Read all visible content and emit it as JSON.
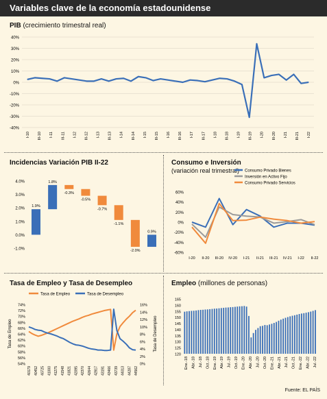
{
  "page": {
    "title": "Variables clave de la economía estadounidense",
    "source": "Fuente: EL PAÍS"
  },
  "chart_data": [
    {
      "id": "pib",
      "type": "line",
      "title": "PIB",
      "subtitle": "(crecimiento trimestral real)",
      "ylim": [
        -40,
        40
      ],
      "yticks": [
        "40%",
        "30%",
        "20%",
        "10%",
        "0%",
        "-10%",
        "-20%",
        "-30%",
        "-40%"
      ],
      "xlabels": [
        "I-10",
        "III-10",
        "I-11",
        "III-11",
        "I-12",
        "III-12",
        "I-13",
        "III-13",
        "I-14",
        "III-14",
        "I-15",
        "III-15",
        "I-16",
        "III-16",
        "I-17",
        "III-17",
        "I-18",
        "III-18",
        "I-19",
        "III-19",
        "I-20",
        "III-20",
        "I-21",
        "III-21",
        "I-22"
      ],
      "series": [
        {
          "color": "#3a6fb8",
          "values": [
            2.5,
            4,
            3.5,
            3,
            1,
            4,
            3,
            2,
            1,
            1,
            3,
            1,
            3,
            3.5,
            1,
            5,
            4,
            1.5,
            3,
            2,
            1,
            0,
            2,
            1.5,
            0.5,
            2,
            3.5,
            3,
            1,
            -2,
            -31,
            34,
            4,
            6,
            7,
            2,
            7,
            -1,
            0
          ]
        }
      ]
    },
    {
      "id": "incidencias",
      "type": "bar",
      "title": "Incidencias Variación PIB II-22",
      "ylim": [
        -1.0,
        4.0
      ],
      "yticks": [
        "4.0%",
        "3.0%",
        "2.0%",
        "1.0%",
        "0.0%",
        "-1.0%"
      ],
      "bars": [
        {
          "start": 0.0,
          "end": 1.9,
          "label": "1.9%",
          "color": "#3a6fb8"
        },
        {
          "start": 1.9,
          "end": 3.7,
          "label": "1.8%",
          "color": "#3a6fb8"
        },
        {
          "start": 3.7,
          "end": 3.4,
          "label": "-0.3%",
          "color": "#f08a3c"
        },
        {
          "start": 3.4,
          "end": 2.9,
          "label": "-0.5%",
          "color": "#f08a3c"
        },
        {
          "start": 2.9,
          "end": 2.2,
          "label": "-0.7%",
          "color": "#f08a3c"
        },
        {
          "start": 2.2,
          "end": 1.1,
          "label": "-1.1%",
          "color": "#f08a3c"
        },
        {
          "start": 1.1,
          "end": -0.9,
          "label": "-2.0%",
          "color": "#f08a3c"
        },
        {
          "start": -0.9,
          "end": 0.0,
          "label": "0.9%",
          "color": "#3a6fb8"
        }
      ]
    },
    {
      "id": "consumo",
      "type": "line",
      "title": "Consumo e Inversión",
      "subtitle": "(variación real trimestral)",
      "ylim": [
        -60,
        60
      ],
      "yticks": [
        "60%",
        "40%",
        "20%",
        "0%",
        "-20%",
        "-40%",
        "-60%"
      ],
      "xlabels": [
        "I-20",
        "II-20",
        "III-20",
        "IV-20",
        "I-21",
        "II-21",
        "III-21",
        "IV-21",
        "I-22",
        "II-22"
      ],
      "series": [
        {
          "name": "Consumo Privado Bienes",
          "color": "#3a6fb8",
          "values": [
            0,
            -10,
            47,
            -5,
            25,
            12,
            -10,
            -2,
            -2,
            -6
          ]
        },
        {
          "name": "Inversión en Activo Fijo",
          "color": "#9a9a9a",
          "values": [
            -4,
            -30,
            30,
            15,
            12,
            10,
            -2,
            1,
            5,
            -5
          ]
        },
        {
          "name": "Consumo Privado Servicios",
          "color": "#f08a3c",
          "values": [
            -10,
            -42,
            37,
            3,
            4,
            10,
            6,
            3,
            -2,
            1
          ]
        }
      ]
    },
    {
      "id": "empleo_desempleo",
      "type": "line",
      "title": "Tasa de Empleo y Tasa de Desempleo",
      "yleft": {
        "label": "Tasa de Empleo",
        "ylim": [
          54,
          74
        ],
        "ticks": [
          "74%",
          "72%",
          "70%",
          "68%",
          "66%",
          "64%",
          "62%",
          "60%",
          "58%",
          "56%",
          "54%"
        ]
      },
      "yright": {
        "label": "Tasa de Desempleo",
        "ylim": [
          0,
          16
        ],
        "ticks": [
          "16%",
          "14%",
          "12%",
          "10%",
          "8%",
          "6%",
          "4%",
          "2%",
          "0%"
        ]
      },
      "xlabels": [
        "40179",
        "40452",
        "40725",
        "41000",
        "41275",
        "41548",
        "41821",
        "42095",
        "42370",
        "42644",
        "42917",
        "43191",
        "43466",
        "43739",
        "44013",
        "44287",
        "44562"
      ],
      "series": [
        {
          "name": "Tasa de Empleo",
          "color": "#f08a3c",
          "axis": "left",
          "values": [
            64.8,
            64.1,
            63.6,
            63.2,
            63.5,
            63.9,
            64.3,
            64.8,
            65.3,
            65.8,
            66.3,
            66.8,
            67.3,
            67.8,
            68.3,
            68.7,
            69.1,
            69.6,
            70,
            70.3,
            70.7,
            71,
            71.3,
            71.6,
            71.9,
            72.1,
            72.3,
            58.5,
            64,
            66.5,
            67.8,
            69,
            70,
            71.2,
            72
          ]
        },
        {
          "name": "Tasa de Desempleo",
          "color": "#3a6fb8",
          "axis": "right",
          "values": [
            9.9,
            9.6,
            9.2,
            9,
            8.9,
            8.5,
            8.2,
            8,
            7.7,
            7.4,
            7,
            6.7,
            6.2,
            5.7,
            5.3,
            5,
            4.9,
            4.7,
            4.4,
            4.1,
            3.9,
            3.8,
            3.6,
            3.6,
            3.5,
            3.5,
            3.6,
            14.7,
            8.9,
            6.7,
            6,
            5.2,
            4.2,
            3.7,
            3.6
          ]
        }
      ]
    },
    {
      "id": "empleo",
      "type": "bar",
      "title": "Empleo",
      "subtitle": "(millones de personas)",
      "ylim": [
        120,
        165
      ],
      "yticks": [
        "165",
        "160",
        "155",
        "150",
        "145",
        "140",
        "135",
        "130",
        "125",
        "120"
      ],
      "xlabels": [
        "Ene.-18",
        "Abr.-18",
        "Jul.-18",
        "Oct.-18",
        "Ene.-19",
        "Abr.-19",
        "Jul.-19",
        "Oct.-19",
        "Ene.-20",
        "Abr.-20",
        "Jul.-20",
        "Oct.-20",
        "Ene.-21",
        "Abr.-21",
        "Jul.-21",
        "Oct.-21",
        "Ene.-22",
        "Abr.-22",
        "Jul.-22"
      ],
      "color": "#3a6fb8",
      "values": [
        154.5,
        154.8,
        155,
        155.2,
        155.3,
        155.5,
        155.8,
        156,
        156.1,
        156.3,
        156.4,
        156.6,
        156.8,
        157,
        157.1,
        157.3,
        157.5,
        157.7,
        157.9,
        158,
        158.2,
        158.3,
        158.5,
        158.7,
        158.9,
        159,
        159.2,
        158.7,
        151,
        133.4,
        137,
        139.6,
        141.1,
        142.6,
        142.9,
        143.6,
        143.4,
        144,
        144.6,
        145.3,
        146.1,
        147.1,
        148,
        148.8,
        149.5,
        150.1,
        150.7,
        151.2,
        151.6,
        152.1,
        152.6,
        153,
        153.3,
        153.7,
        154.1,
        154.6,
        155.2,
        155.8
      ]
    }
  ]
}
